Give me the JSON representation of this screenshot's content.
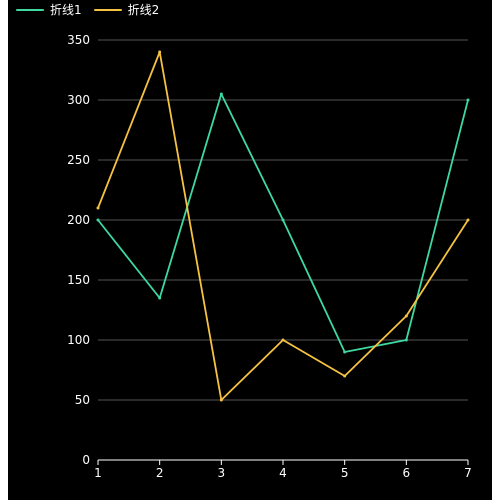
{
  "chart_data": {
    "type": "line",
    "x": [
      "1",
      "2",
      "3",
      "4",
      "5",
      "6",
      "7"
    ],
    "series": [
      {
        "name": "折线1",
        "color": "#3dd9a0",
        "values": [
          200,
          135,
          305,
          200,
          90,
          100,
          300
        ]
      },
      {
        "name": "折线2",
        "color": "#f5c242",
        "values": [
          210,
          340,
          50,
          100,
          70,
          120,
          200
        ]
      }
    ],
    "y_ticks": [
      "0",
      "50",
      "100",
      "150",
      "200",
      "250",
      "300",
      "350"
    ],
    "ylim": [
      0,
      350
    ],
    "title": "",
    "xlabel": "",
    "ylabel": "",
    "grid": true,
    "legend_position": "top-left",
    "colors": {
      "background": "#000000",
      "grid": "#555555",
      "axis": "#ffffff",
      "text": "#ffffff"
    }
  }
}
